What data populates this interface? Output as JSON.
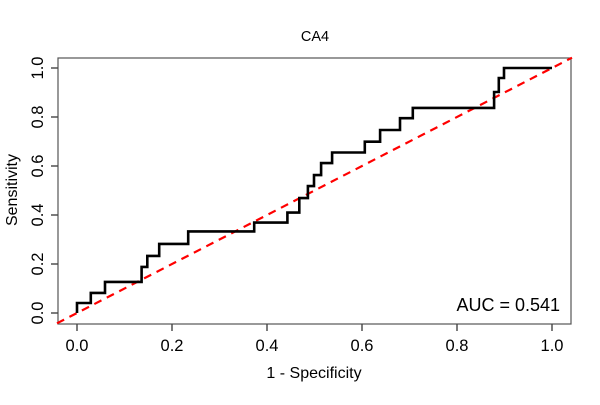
{
  "figure": {
    "title": "CA4",
    "annotation": "AUC = 0.541"
  },
  "chart_data": {
    "type": "line",
    "subtype": "roc-step-curve",
    "title": "CA4",
    "xlabel": "1 - Specificity",
    "ylabel": "Sensitivity",
    "xlim": [
      0.0,
      1.0
    ],
    "ylim": [
      0.0,
      1.0
    ],
    "grid": false,
    "auc": 0.541,
    "annotation": "AUC = 0.541",
    "annotation_position": "bottom-right",
    "x_ticks": [
      0.0,
      0.2,
      0.4,
      0.6,
      0.8,
      1.0
    ],
    "y_ticks": [
      0.0,
      0.2,
      0.4,
      0.6,
      0.8,
      1.0
    ],
    "x_tick_labels": [
      "0.0",
      "0.2",
      "0.4",
      "0.6",
      "0.8",
      "1.0"
    ],
    "y_tick_labels": [
      "0.0",
      "0.2",
      "0.4",
      "0.6",
      "0.8",
      "1.0"
    ],
    "colors": {
      "roc_curve": "#000000",
      "chance_line": "#ff0000",
      "box": "#555555",
      "text": "#000000"
    },
    "series": [
      {
        "name": "roc-curve",
        "color": "#000000",
        "style": "solid",
        "line_width": 2.6,
        "points": [
          [
            0.0,
            0.0
          ],
          [
            0.0,
            0.041
          ],
          [
            0.029,
            0.041
          ],
          [
            0.029,
            0.082
          ],
          [
            0.059,
            0.082
          ],
          [
            0.059,
            0.127
          ],
          [
            0.136,
            0.127
          ],
          [
            0.136,
            0.188
          ],
          [
            0.148,
            0.188
          ],
          [
            0.148,
            0.233
          ],
          [
            0.173,
            0.233
          ],
          [
            0.173,
            0.282
          ],
          [
            0.234,
            0.282
          ],
          [
            0.234,
            0.333
          ],
          [
            0.373,
            0.333
          ],
          [
            0.373,
            0.369
          ],
          [
            0.443,
            0.369
          ],
          [
            0.443,
            0.41
          ],
          [
            0.468,
            0.41
          ],
          [
            0.468,
            0.469
          ],
          [
            0.486,
            0.469
          ],
          [
            0.486,
            0.518
          ],
          [
            0.499,
            0.518
          ],
          [
            0.499,
            0.563
          ],
          [
            0.514,
            0.563
          ],
          [
            0.514,
            0.612
          ],
          [
            0.537,
            0.612
          ],
          [
            0.537,
            0.655
          ],
          [
            0.606,
            0.655
          ],
          [
            0.606,
            0.699
          ],
          [
            0.638,
            0.699
          ],
          [
            0.638,
            0.747
          ],
          [
            0.68,
            0.747
          ],
          [
            0.68,
            0.795
          ],
          [
            0.707,
            0.795
          ],
          [
            0.707,
            0.837
          ],
          [
            0.878,
            0.837
          ],
          [
            0.878,
            0.902
          ],
          [
            0.888,
            0.902
          ],
          [
            0.888,
            0.959
          ],
          [
            0.899,
            0.959
          ],
          [
            0.899,
            1.0
          ],
          [
            1.0,
            1.0
          ]
        ]
      },
      {
        "name": "chance-diagonal",
        "color": "#ff0000",
        "style": "dashed",
        "line_width": 2.2,
        "points": [
          [
            -0.042,
            -0.042
          ],
          [
            1.042,
            1.042
          ]
        ]
      }
    ]
  }
}
